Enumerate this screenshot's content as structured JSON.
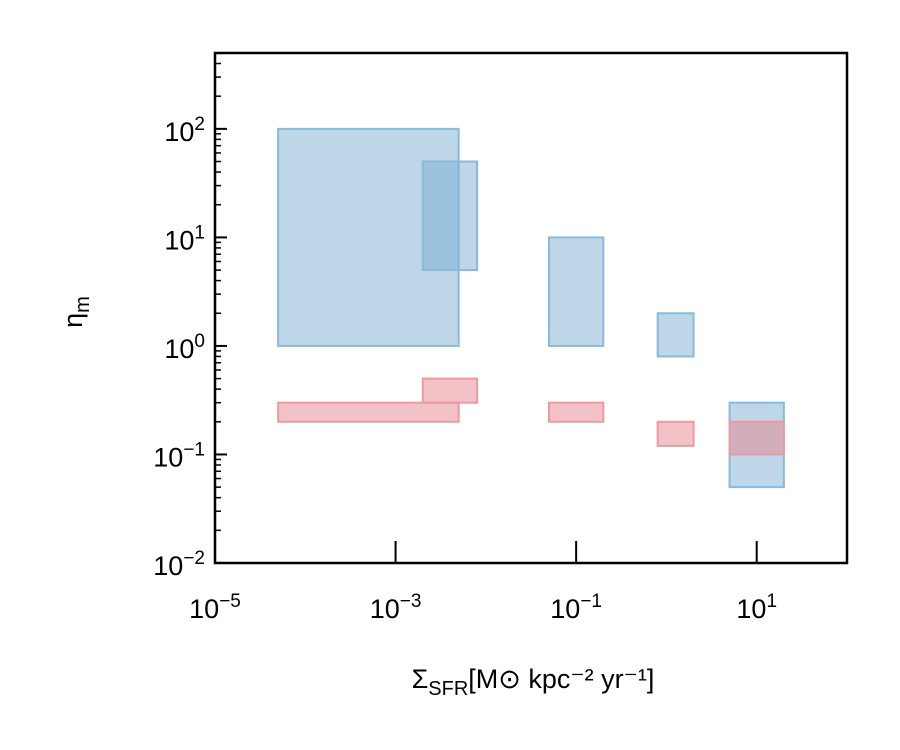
{
  "chart_data": {
    "type": "box-range",
    "x_scale": "log",
    "y_scale": "log",
    "xlim": [
      1e-05,
      100
    ],
    "ylim": [
      0.01,
      500
    ],
    "xlabel": {
      "base": "Σ",
      "sub": "SFR",
      "rest": "[M⊙ kpc⁻² yr⁻¹]"
    },
    "ylabel": {
      "base": "η",
      "sub": "m"
    },
    "x_ticks": [
      {
        "value": 1e-05,
        "label_base": "10",
        "label_exp": "−5"
      },
      {
        "value": 0.001,
        "label_base": "10",
        "label_exp": "−3"
      },
      {
        "value": 0.1,
        "label_base": "10",
        "label_exp": "−1"
      },
      {
        "value": 10,
        "label_base": "10",
        "label_exp": "1"
      }
    ],
    "y_ticks": [
      {
        "value": 0.01,
        "label_base": "10",
        "label_exp": "−2"
      },
      {
        "value": 0.1,
        "label_base": "10",
        "label_exp": "−1"
      },
      {
        "value": 1,
        "label_base": "10",
        "label_exp": "0"
      },
      {
        "value": 10,
        "label_base": "10",
        "label_exp": "1"
      },
      {
        "value": 100,
        "label_base": "10",
        "label_exp": "2"
      }
    ],
    "series": [
      {
        "color": "#7bafd4",
        "edge_color": "#8bb9db",
        "boxes": [
          {
            "x": [
              5e-05,
              0.005
            ],
            "y": [
              1,
              100
            ]
          },
          {
            "x": [
              0.002,
              0.008
            ],
            "y": [
              5,
              50
            ]
          },
          {
            "x": [
              0.05,
              0.2
            ],
            "y": [
              1,
              10
            ]
          },
          {
            "x": [
              0.8,
              2
            ],
            "y": [
              0.8,
              2
            ]
          },
          {
            "x": [
              5,
              20
            ],
            "y": [
              0.05,
              0.3
            ]
          }
        ]
      },
      {
        "color": "#e8858f",
        "edge_color": "#eb9aa1",
        "boxes": [
          {
            "x": [
              5e-05,
              0.005
            ],
            "y": [
              0.2,
              0.3
            ]
          },
          {
            "x": [
              0.002,
              0.008
            ],
            "y": [
              0.3,
              0.5
            ]
          },
          {
            "x": [
              0.05,
              0.2
            ],
            "y": [
              0.2,
              0.3
            ]
          },
          {
            "x": [
              0.8,
              2
            ],
            "y": [
              0.12,
              0.2
            ]
          },
          {
            "x": [
              5,
              20
            ],
            "y": [
              0.1,
              0.2
            ]
          }
        ]
      }
    ],
    "grid": false,
    "legend": "none"
  }
}
